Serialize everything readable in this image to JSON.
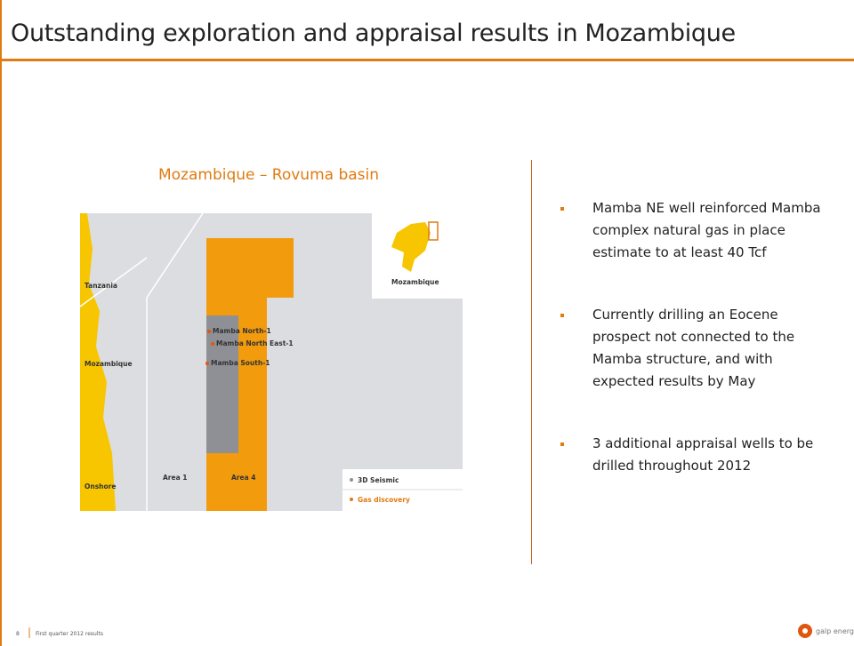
{
  "header": {
    "title": "Outstanding exploration and appraisal results in Mozambique"
  },
  "map": {
    "title": "Mozambique – Rovuma basin",
    "labels": [
      "Tanzania",
      "Mozambique",
      "Onshore",
      "Area 1",
      "Area 4",
      "Mamba North-1",
      "Mamba North East-1",
      "Mamba South-1"
    ],
    "inset_label": "Mozambique",
    "legend": [
      "3D Seismic",
      "Gas discovery"
    ]
  },
  "bullets": [
    "Mamba NE well reinforced Mamba complex natural gas in place estimate to at least 40 Tcf",
    "Currently drilling an Eocene prospect not connected to the Mamba structure, and with expected results by May",
    "3 additional appraisal wells to be drilled throughout 2012"
  ],
  "footer": {
    "page": "8",
    "text": "First quarter 2012 results",
    "logo": "galp energia"
  }
}
